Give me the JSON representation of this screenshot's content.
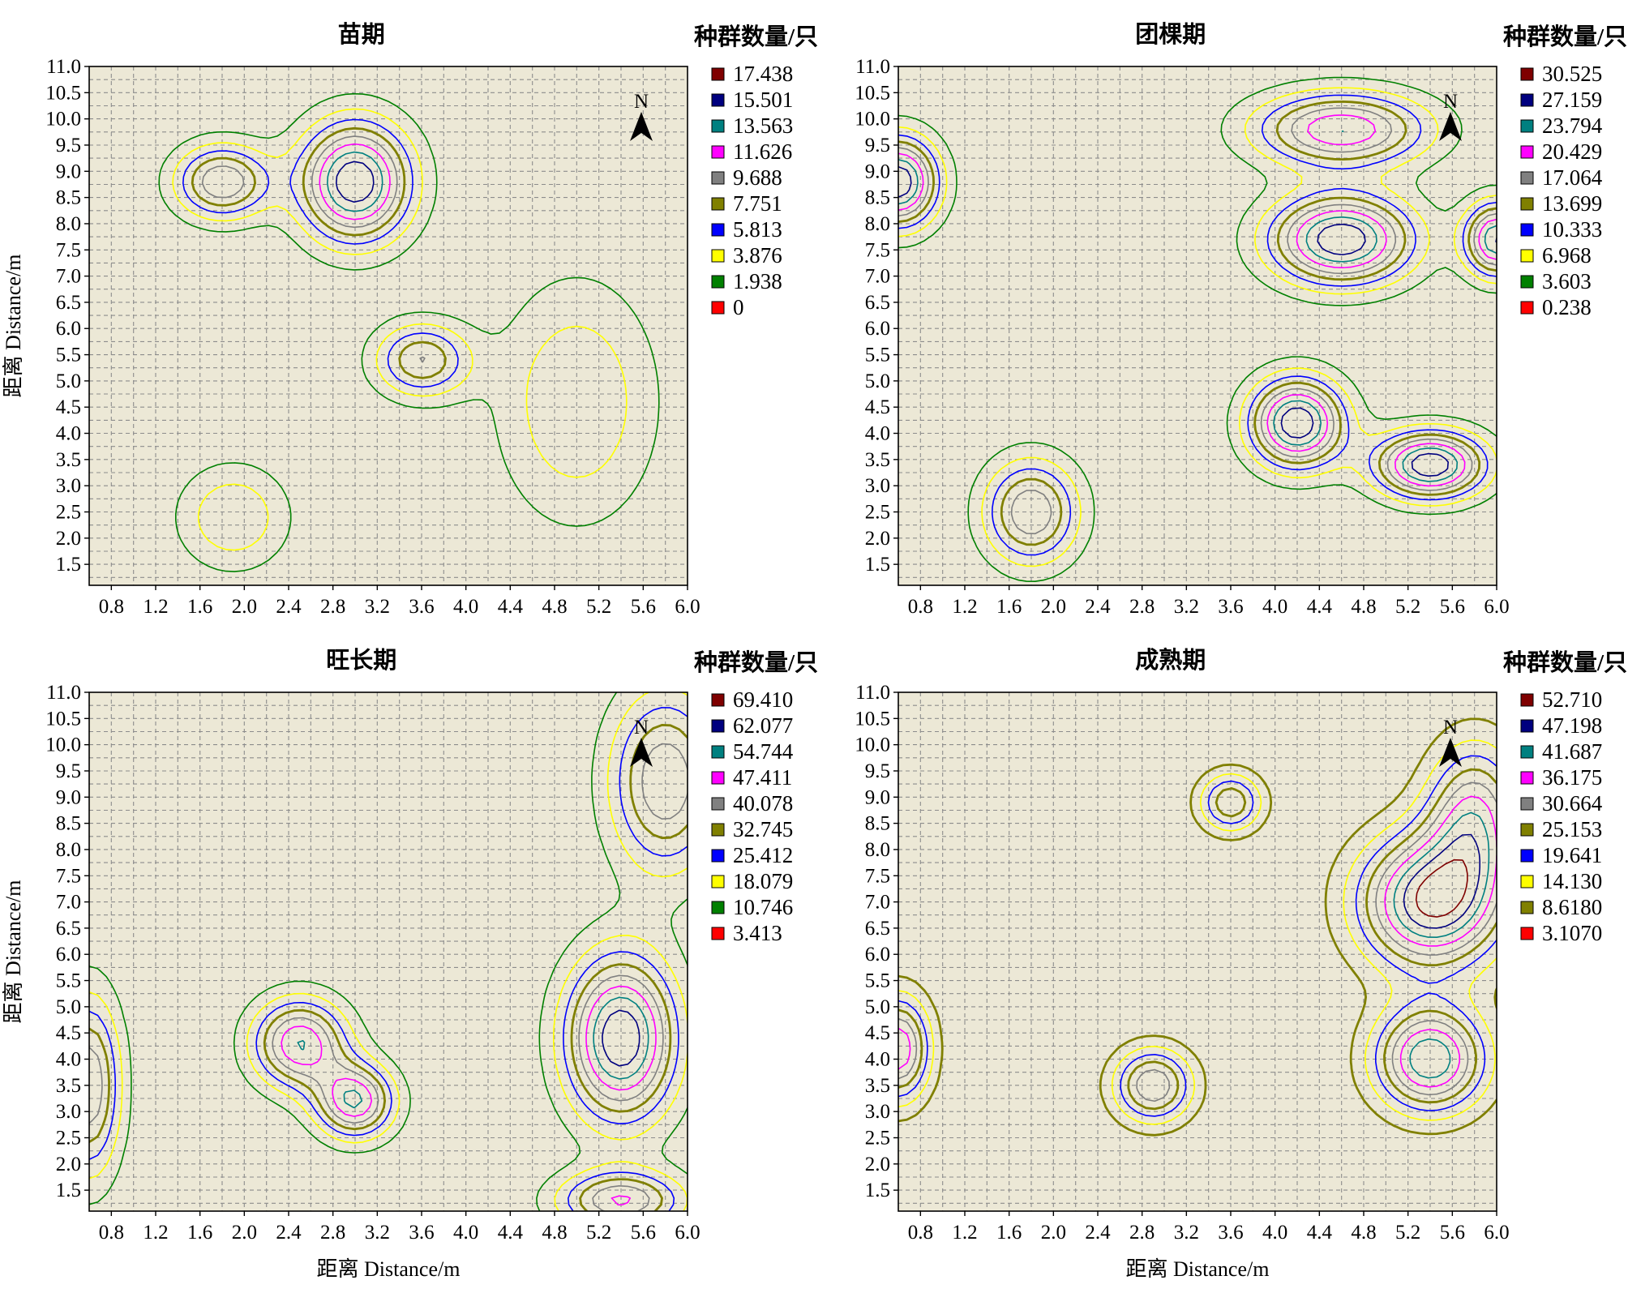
{
  "chart_data": [
    {
      "type": "contour",
      "title": "苗期",
      "xlabel": "",
      "ylabel": "距离 Distance/m",
      "xlim": [
        0.6,
        6.0
      ],
      "ylim": [
        1.1,
        11.0
      ],
      "x_ticks": [
        "0.8",
        "1.2",
        "1.6",
        "2.0",
        "2.4",
        "2.8",
        "3.2",
        "3.6",
        "4.0",
        "4.4",
        "4.8",
        "5.2",
        "5.6",
        "6.0"
      ],
      "y_ticks": [
        "11.0",
        "10.5",
        "10.0",
        "9.5",
        "9.0",
        "8.5",
        "8.0",
        "7.5",
        "7.0",
        "6.5",
        "6.0",
        "5.5",
        "5.0",
        "4.5",
        "4.0",
        "3.5",
        "3.0",
        "2.5",
        "2.0",
        "1.5"
      ],
      "grid": true,
      "north_arrow": "N",
      "legend": {
        "title": "种群数量/只",
        "position": "right",
        "entries": [
          {
            "label": "17.438",
            "color": "#7f0000"
          },
          {
            "label": "15.501",
            "color": "#00007f"
          },
          {
            "label": "13.563",
            "color": "#008080"
          },
          {
            "label": "11.626",
            "color": "#ff00ff"
          },
          {
            "label": "9.688",
            "color": "#808080"
          },
          {
            "label": "7.751",
            "color": "#808000"
          },
          {
            "label": "5.813",
            "color": "#0000ff"
          },
          {
            "label": "3.876",
            "color": "#ffff00"
          },
          {
            "label": "1.938",
            "color": "#008000"
          },
          {
            "label": "0",
            "color": "#ff0000"
          }
        ]
      },
      "hotspots": [
        {
          "x": 3.0,
          "y": 8.8,
          "peak": 17.438,
          "sx": 0.35,
          "sy": 0.8
        },
        {
          "x": 1.8,
          "y": 8.8,
          "peak": 11.626,
          "sx": 0.3,
          "sy": 0.5
        },
        {
          "x": 1.9,
          "y": 2.4,
          "peak": 5.813,
          "sx": 0.35,
          "sy": 0.7
        },
        {
          "x": 3.6,
          "y": 5.4,
          "peak": 9.688,
          "sx": 0.3,
          "sy": 0.5
        },
        {
          "x": 5.0,
          "y": 4.6,
          "peak": 5.813,
          "sx": 0.5,
          "sy": 1.6
        }
      ]
    },
    {
      "type": "contour",
      "title": "团棵期",
      "xlabel": "",
      "ylabel": "",
      "xlim": [
        0.6,
        6.0
      ],
      "ylim": [
        1.1,
        11.0
      ],
      "x_ticks": [
        "0.8",
        "1.2",
        "1.6",
        "2.0",
        "2.4",
        "2.8",
        "3.2",
        "3.6",
        "4.0",
        "4.4",
        "4.8",
        "5.2",
        "5.6",
        "6.0"
      ],
      "y_ticks": [
        "11.0",
        "10.5",
        "10.0",
        "9.5",
        "9.0",
        "8.5",
        "8.0",
        "7.5",
        "7.0",
        "6.5",
        "6.0",
        "5.5",
        "5.0",
        "4.5",
        "4.0",
        "3.5",
        "3.0",
        "2.5",
        "2.0",
        "1.5"
      ],
      "grid": true,
      "north_arrow": "N",
      "legend": {
        "title": "种群数量/只",
        "position": "right",
        "entries": [
          {
            "label": "30.525",
            "color": "#7f0000"
          },
          {
            "label": "27.159",
            "color": "#00007f"
          },
          {
            "label": "23.794",
            "color": "#008080"
          },
          {
            "label": "20.429",
            "color": "#ff00ff"
          },
          {
            "label": "17.064",
            "color": "#808080"
          },
          {
            "label": "13.699",
            "color": "#808000"
          },
          {
            "label": "10.333",
            "color": "#0000ff"
          },
          {
            "label": "6.968",
            "color": "#ffff00"
          },
          {
            "label": "3.603",
            "color": "#008000"
          },
          {
            "label": "0.238",
            "color": "#ff0000"
          }
        ]
      },
      "hotspots": [
        {
          "x": 4.6,
          "y": 7.7,
          "peak": 30.525,
          "sx": 0.45,
          "sy": 0.6
        },
        {
          "x": 4.2,
          "y": 4.2,
          "peak": 30.525,
          "sx": 0.3,
          "sy": 0.6
        },
        {
          "x": 5.4,
          "y": 3.4,
          "peak": 30.525,
          "sx": 0.35,
          "sy": 0.45
        },
        {
          "x": 4.6,
          "y": 9.8,
          "peak": 23.794,
          "sx": 0.55,
          "sy": 0.5
        },
        {
          "x": 0.6,
          "y": 8.8,
          "peak": 30.525,
          "sx": 0.25,
          "sy": 0.6
        },
        {
          "x": 1.8,
          "y": 2.5,
          "peak": 20.429,
          "sx": 0.3,
          "sy": 0.7
        },
        {
          "x": 6.0,
          "y": 7.7,
          "peak": 27.159,
          "sx": 0.2,
          "sy": 0.5
        }
      ]
    },
    {
      "type": "contour",
      "title": "旺长期",
      "xlabel": "距离 Distance/m",
      "ylabel": "距离 Distance/m",
      "xlim": [
        0.6,
        6.0
      ],
      "ylim": [
        1.1,
        11.0
      ],
      "x_ticks": [
        "0.8",
        "1.2",
        "1.6",
        "2.0",
        "2.4",
        "2.8",
        "3.2",
        "3.6",
        "4.0",
        "4.4",
        "4.8",
        "5.2",
        "5.6",
        "6.0"
      ],
      "y_ticks": [
        "11.0",
        "10.5",
        "10.0",
        "9.5",
        "9.0",
        "8.5",
        "8.0",
        "7.5",
        "7.0",
        "6.5",
        "6.0",
        "5.5",
        "5.0",
        "4.5",
        "4.0",
        "3.5",
        "3.0",
        "2.5",
        "2.0",
        "1.5"
      ],
      "grid": true,
      "north_arrow": "N",
      "legend": {
        "title": "种群数量/只",
        "position": "right",
        "entries": [
          {
            "label": "69.410",
            "color": "#7f0000"
          },
          {
            "label": "62.077",
            "color": "#00007f"
          },
          {
            "label": "54.744",
            "color": "#008080"
          },
          {
            "label": "47.411",
            "color": "#ff00ff"
          },
          {
            "label": "40.078",
            "color": "#808080"
          },
          {
            "label": "32.745",
            "color": "#808000"
          },
          {
            "label": "25.412",
            "color": "#0000ff"
          },
          {
            "label": "18.079",
            "color": "#ffff00"
          },
          {
            "label": "10.746",
            "color": "#008000"
          },
          {
            "label": "3.413",
            "color": "#ff0000"
          }
        ]
      },
      "hotspots": [
        {
          "x": 5.4,
          "y": 4.4,
          "peak": 69.41,
          "sx": 0.35,
          "sy": 1.1
        },
        {
          "x": 2.5,
          "y": 4.3,
          "peak": 54.744,
          "sx": 0.3,
          "sy": 0.6
        },
        {
          "x": 3.0,
          "y": 3.2,
          "peak": 54.744,
          "sx": 0.25,
          "sy": 0.5
        },
        {
          "x": 5.8,
          "y": 9.3,
          "peak": 47.411,
          "sx": 0.35,
          "sy": 1.2
        },
        {
          "x": 5.4,
          "y": 1.3,
          "peak": 47.411,
          "sx": 0.4,
          "sy": 0.4
        },
        {
          "x": 0.6,
          "y": 3.5,
          "peak": 47.411,
          "sx": 0.2,
          "sy": 1.2
        }
      ]
    },
    {
      "type": "contour",
      "title": "成熟期",
      "xlabel": "距离 Distance/m",
      "ylabel": "",
      "xlim": [
        0.6,
        6.0
      ],
      "ylim": [
        1.1,
        11.0
      ],
      "x_ticks": [
        "0.8",
        "1.2",
        "1.6",
        "2.0",
        "2.4",
        "2.8",
        "3.2",
        "3.6",
        "4.0",
        "4.4",
        "4.8",
        "5.2",
        "5.6",
        "6.0"
      ],
      "y_ticks": [
        "11.0",
        "10.5",
        "10.0",
        "9.5",
        "9.0",
        "8.5",
        "8.0",
        "7.5",
        "7.0",
        "6.5",
        "6.0",
        "5.5",
        "5.0",
        "4.5",
        "4.0",
        "3.5",
        "3.0",
        "2.5",
        "2.0",
        "1.5"
      ],
      "grid": true,
      "north_arrow": "N",
      "legend": {
        "title": "种群数量/只",
        "position": "right",
        "entries": [
          {
            "label": "52.710",
            "color": "#7f0000"
          },
          {
            "label": "47.198",
            "color": "#00007f"
          },
          {
            "label": "41.687",
            "color": "#008080"
          },
          {
            "label": "36.175",
            "color": "#ff00ff"
          },
          {
            "label": "30.664",
            "color": "#808080"
          },
          {
            "label": "25.153",
            "color": "#808000"
          },
          {
            "label": "19.641",
            "color": "#0000ff"
          },
          {
            "label": "14.130",
            "color": "#ffff00"
          },
          {
            "label": "8.6180",
            "color": "#808000"
          },
          {
            "label": "3.1070",
            "color": "#ff0000"
          }
        ]
      },
      "hotspots": [
        {
          "x": 5.4,
          "y": 7.0,
          "peak": 52.71,
          "sx": 0.45,
          "sy": 0.9
        },
        {
          "x": 5.4,
          "y": 4.0,
          "peak": 47.198,
          "sx": 0.35,
          "sy": 0.7
        },
        {
          "x": 2.9,
          "y": 3.5,
          "peak": 36.175,
          "sx": 0.25,
          "sy": 0.5
        },
        {
          "x": 0.6,
          "y": 4.2,
          "peak": 41.687,
          "sx": 0.2,
          "sy": 0.7
        },
        {
          "x": 5.8,
          "y": 8.6,
          "peak": 36.175,
          "sx": 0.3,
          "sy": 1.0
        },
        {
          "x": 3.6,
          "y": 8.9,
          "peak": 30.664,
          "sx": 0.2,
          "sy": 0.4
        }
      ]
    }
  ]
}
